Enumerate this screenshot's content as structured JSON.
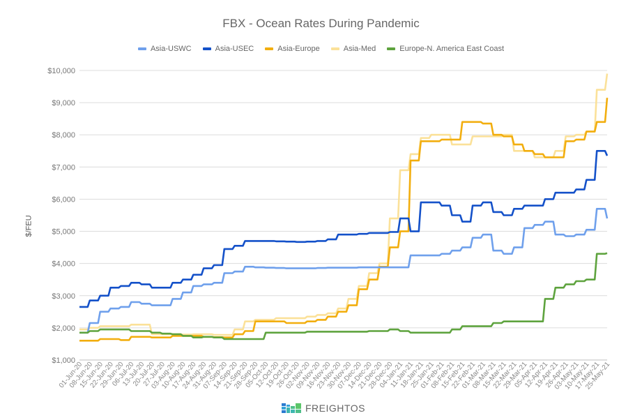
{
  "chart_data": {
    "type": "line",
    "title": "FBX - Ocean Rates During Pandemic",
    "xlabel": "",
    "ylabel": "$/FEU",
    "ylim": [
      1000,
      10000
    ],
    "yticks": [
      "$1,000",
      "$2,000",
      "$3,000",
      "$4,000",
      "$5,000",
      "$6,000",
      "$7,000",
      "$8,000",
      "$9,000",
      "$10,000"
    ],
    "grid": true,
    "legend_position": "top",
    "categories": [
      "01-Jun-20",
      "08-Jun-20",
      "15-Jun-20",
      "22-Jun-20",
      "29-Jun-20",
      "06-Jul-20",
      "13-Jul-20",
      "20-Jul-20",
      "27-Jul-20",
      "03-Aug-20",
      "10-Aug-20",
      "17-Aug-20",
      "24-Aug-20",
      "31-Aug-20",
      "07-Sep-20",
      "14-Sep-20",
      "21-Sep-20",
      "28-Sep-20",
      "05-Oct-20",
      "12-Oct-20",
      "19-Oct-20",
      "26-Oct-20",
      "02-Nov-20",
      "09-Nov-20",
      "16-Nov-20",
      "23-Nov-20",
      "30-Nov-20",
      "07-Dec-20",
      "14-Dec-20",
      "21-Dec-20",
      "28-Dec-20",
      "04-Jan-21",
      "11-Jan-21",
      "18-Jan-21",
      "25-Jan-21",
      "01-Feb-21",
      "08-Feb-21",
      "15-Feb-21",
      "22-Feb-21",
      "01-Mar-21",
      "08-Mar-21",
      "15-Mar-21",
      "22-Mar-21",
      "29-Mar-21",
      "05-Apr-21",
      "12-Apr-21",
      "19-Apr-21",
      "26-Apr-21",
      "03-May-21",
      "10-May-21",
      "17-May-21",
      "25-May-21"
    ],
    "series": [
      {
        "name": "Asia-USWC",
        "color": "#6fa0ec",
        "values": [
          1850,
          2150,
          2500,
          2600,
          2650,
          2800,
          2750,
          2700,
          2700,
          2900,
          3100,
          3300,
          3350,
          3400,
          3700,
          3750,
          3900,
          3880,
          3870,
          3860,
          3850,
          3850,
          3850,
          3860,
          3870,
          3870,
          3870,
          3880,
          3880,
          3880,
          3880,
          3880,
          4250,
          4250,
          4250,
          4300,
          4400,
          4500,
          4800,
          4900,
          4400,
          4300,
          4500,
          5100,
          5200,
          5300,
          4900,
          4850,
          4900,
          5050,
          5700,
          5400
        ]
      },
      {
        "name": "Asia-USEC",
        "color": "#1451c9",
        "values": [
          2650,
          2850,
          3000,
          3250,
          3300,
          3400,
          3350,
          3250,
          3250,
          3400,
          3500,
          3650,
          3850,
          3950,
          4450,
          4550,
          4700,
          4700,
          4700,
          4690,
          4680,
          4670,
          4680,
          4700,
          4750,
          4900,
          4900,
          4920,
          4950,
          4950,
          4980,
          5400,
          5000,
          5900,
          5900,
          5800,
          5500,
          5300,
          5800,
          5900,
          5600,
          5500,
          5700,
          5800,
          5800,
          6000,
          6200,
          6200,
          6300,
          6600,
          7500,
          7350
        ]
      },
      {
        "name": "Asia-Europe",
        "color": "#f2ae0f",
        "values": [
          1600,
          1600,
          1650,
          1650,
          1620,
          1720,
          1720,
          1700,
          1700,
          1750,
          1750,
          1750,
          1720,
          1710,
          1700,
          1800,
          1900,
          2200,
          2200,
          2200,
          2150,
          2150,
          2200,
          2250,
          2350,
          2500,
          2700,
          3200,
          3500,
          3900,
          4500,
          5000,
          7200,
          7800,
          7800,
          7850,
          7850,
          8400,
          8400,
          8350,
          8000,
          7950,
          7700,
          7500,
          7400,
          7300,
          7300,
          7800,
          7850,
          8100,
          8400,
          9150
        ]
      },
      {
        "name": "Asia-Med",
        "color": "#fbe199",
        "values": [
          1950,
          2000,
          2050,
          2050,
          2050,
          2100,
          2100,
          1800,
          1800,
          1800,
          1790,
          1800,
          1800,
          1780,
          1780,
          1950,
          2200,
          2250,
          2250,
          2300,
          2300,
          2300,
          2350,
          2400,
          2450,
          2600,
          2900,
          3300,
          3700,
          4000,
          5400,
          6900,
          7400,
          7900,
          8000,
          8000,
          7700,
          7700,
          7950,
          7950,
          7950,
          8000,
          7500,
          7500,
          7300,
          7300,
          7500,
          7950,
          8000,
          8100,
          9400,
          9900
        ]
      },
      {
        "name": "Europe-N. America East Coast",
        "color": "#5ea33e",
        "values": [
          1850,
          1900,
          1950,
          1950,
          1950,
          1900,
          1900,
          1850,
          1820,
          1800,
          1750,
          1700,
          1720,
          1700,
          1650,
          1650,
          1650,
          1650,
          1850,
          1850,
          1850,
          1850,
          1880,
          1880,
          1880,
          1880,
          1880,
          1880,
          1900,
          1900,
          1950,
          1900,
          1850,
          1850,
          1850,
          1850,
          1950,
          2050,
          2050,
          2050,
          2150,
          2200,
          2200,
          2200,
          2200,
          2900,
          3250,
          3350,
          3450,
          3500,
          4300,
          4320
        ]
      }
    ]
  },
  "legend": {
    "items": [
      {
        "label": "Asia-USWC",
        "color": "#6fa0ec"
      },
      {
        "label": "Asia-USEC",
        "color": "#1451c9"
      },
      {
        "label": "Asia-Europe",
        "color": "#f2ae0f"
      },
      {
        "label": "Asia-Med",
        "color": "#fbe199"
      },
      {
        "label": "Europe-N. America East Coast",
        "color": "#5ea33e"
      }
    ]
  },
  "logo": {
    "text": "FREIGHTOS"
  }
}
